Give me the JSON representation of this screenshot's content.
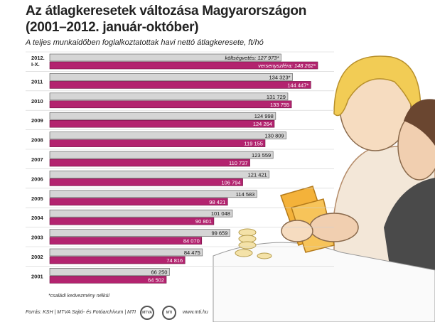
{
  "title_line1": "Az átlagkeresetek változása Magyarországon",
  "title_line2": "(2001–2012. január-október)",
  "subtitle": "A teljes munkaidőben foglalkoztatottak havi nettó átlagkeresete, ft/hó",
  "footnote": "*családi kedvezmény nélkül",
  "source": "Forrás: KSH | MTVA Sajtó- és Fotóarchívum | MTI",
  "logo_left": "MTVA",
  "logo_right": "MTI",
  "url": "www.mti.hu",
  "colors": {
    "public": "#d5d5d5",
    "private": "#b3236f"
  },
  "chart_data": {
    "type": "bar",
    "orientation": "horizontal",
    "categories": [
      "2012. I-X.",
      "2011",
      "2010",
      "2009",
      "2008",
      "2007",
      "2006",
      "2005",
      "2004",
      "2003",
      "2002",
      "2001"
    ],
    "series": [
      {
        "name": "költségvetés",
        "values": [
          127973,
          134323,
          131729,
          124998,
          130809,
          123559,
          121421,
          114583,
          101048,
          99659,
          84475,
          66250
        ],
        "labels": [
          "költségvetés: 127 973*",
          "134 323*",
          "131 729",
          "124 998",
          "130 809",
          "123 559",
          "121 421",
          "114 583",
          "101 048",
          "99 659",
          "84 475",
          "66 250"
        ]
      },
      {
        "name": "versenyszféra",
        "values": [
          148262,
          144447,
          133755,
          124264,
          119155,
          110737,
          106794,
          98421,
          90801,
          84070,
          74816,
          64502
        ],
        "labels": [
          "versenyszféra: 148 262*",
          "144 447*",
          "133 755",
          "124 264",
          "119 155",
          "110 737",
          "106 794",
          "98 421",
          "90 801",
          "84 070",
          "74 816",
          "64 502"
        ]
      }
    ]
  }
}
